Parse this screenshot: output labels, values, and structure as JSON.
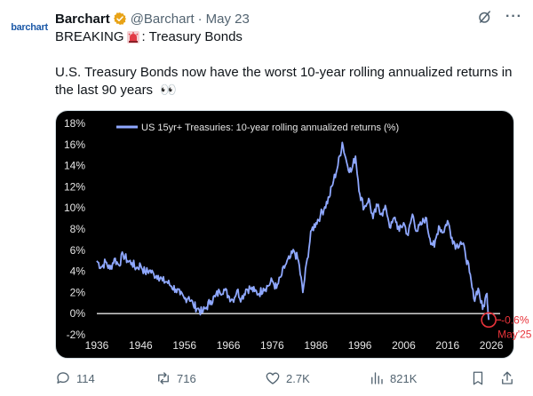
{
  "avatar": {
    "logo_text": "barchart"
  },
  "header": {
    "author": "Barchart",
    "handle": "@Barchart",
    "separator": "·",
    "date": "May 23",
    "more": "···"
  },
  "tweet": {
    "line1_prefix": "BREAKING",
    "line1_suffix": ": Treasury Bonds",
    "body": "U.S. Treasury Bonds now have the worst 10-year rolling annualized returns in the last 90 years",
    "eyes": "👀"
  },
  "chart_data": {
    "type": "line",
    "series": [
      {
        "name": "US 15yr+ Treasuries: 10-year rolling annualized returns (%)",
        "color": "#8fa8ff"
      }
    ],
    "x_ticks": [
      "1936",
      "1946",
      "1956",
      "1966",
      "1976",
      "1986",
      "1996",
      "2006",
      "2016",
      "2026"
    ],
    "y_ticks": [
      "18%",
      "16%",
      "14%",
      "12%",
      "10%",
      "8%",
      "6%",
      "4%",
      "2%",
      "0%",
      "-2%"
    ],
    "xlim": [
      1936,
      2028
    ],
    "ylim": [
      -2,
      18
    ],
    "annotation": {
      "value_label": "-0.6%",
      "date_label": "May'25",
      "x": 2025.4,
      "y": -0.6,
      "color": "#e8333a"
    },
    "points": [
      [
        1936,
        5.0
      ],
      [
        1937,
        4.4
      ],
      [
        1938,
        4.9
      ],
      [
        1939,
        4.2
      ],
      [
        1940,
        5.2
      ],
      [
        1941,
        4.6
      ],
      [
        1942,
        5.6
      ],
      [
        1943,
        5.0
      ],
      [
        1944,
        4.8
      ],
      [
        1945,
        4.3
      ],
      [
        1946,
        4.6
      ],
      [
        1947,
        3.9
      ],
      [
        1948,
        4.1
      ],
      [
        1949,
        3.7
      ],
      [
        1950,
        3.6
      ],
      [
        1951,
        3.1
      ],
      [
        1952,
        3.0
      ],
      [
        1953,
        2.6
      ],
      [
        1954,
        2.3
      ],
      [
        1955,
        1.8
      ],
      [
        1956,
        1.4
      ],
      [
        1957,
        1.6
      ],
      [
        1958,
        0.8
      ],
      [
        1959,
        0.5
      ],
      [
        1960,
        0.1
      ],
      [
        1961,
        0.6
      ],
      [
        1962,
        1.2
      ],
      [
        1963,
        1.6
      ],
      [
        1964,
        2.1
      ],
      [
        1965,
        2.3
      ],
      [
        1966,
        1.7
      ],
      [
        1967,
        1.3
      ],
      [
        1968,
        2.2
      ],
      [
        1969,
        1.4
      ],
      [
        1970,
        2.3
      ],
      [
        1971,
        2.4
      ],
      [
        1972,
        2.1
      ],
      [
        1973,
        1.9
      ],
      [
        1974,
        2.4
      ],
      [
        1975,
        2.6
      ],
      [
        1976,
        3.1
      ],
      [
        1977,
        2.4
      ],
      [
        1978,
        3.5
      ],
      [
        1979,
        4.6
      ],
      [
        1980,
        5.2
      ],
      [
        1981,
        5.9
      ],
      [
        1982,
        5.0
      ],
      [
        1983,
        2.0
      ],
      [
        1984,
        5.2
      ],
      [
        1985,
        7.9
      ],
      [
        1986,
        8.6
      ],
      [
        1987,
        9.3
      ],
      [
        1988,
        10.1
      ],
      [
        1989,
        11.0
      ],
      [
        1990,
        12.6
      ],
      [
        1991,
        14.0
      ],
      [
        1992,
        16.2
      ],
      [
        1993,
        14.3
      ],
      [
        1994,
        13.4
      ],
      [
        1995,
        14.9
      ],
      [
        1996,
        11.3
      ],
      [
        1997,
        10.0
      ],
      [
        1998,
        10.9
      ],
      [
        1999,
        9.0
      ],
      [
        2000,
        10.2
      ],
      [
        2001,
        9.5
      ],
      [
        2002,
        9.9
      ],
      [
        2003,
        8.1
      ],
      [
        2004,
        9.1
      ],
      [
        2005,
        7.8
      ],
      [
        2006,
        8.6
      ],
      [
        2007,
        7.4
      ],
      [
        2008,
        9.4
      ],
      [
        2009,
        7.8
      ],
      [
        2010,
        8.4
      ],
      [
        2011,
        9.1
      ],
      [
        2012,
        7.1
      ],
      [
        2013,
        6.3
      ],
      [
        2014,
        8.3
      ],
      [
        2015,
        7.7
      ],
      [
        2016,
        8.8
      ],
      [
        2017,
        7.2
      ],
      [
        2018,
        6.4
      ],
      [
        2019,
        6.8
      ],
      [
        2020,
        5.9
      ],
      [
        2021,
        3.9
      ],
      [
        2022,
        1.4
      ],
      [
        2023,
        2.4
      ],
      [
        2024,
        0.4
      ],
      [
        2025,
        1.9
      ],
      [
        2025.4,
        -0.6
      ]
    ]
  },
  "actions": {
    "replies": "114",
    "retweets": "716",
    "likes": "2.7K",
    "views": "821K"
  },
  "colors": {
    "text": "#0f1419",
    "secondary": "#536471",
    "verified_gold": "#e8a317",
    "chart_bg": "#000000",
    "series": "#8fa8ff"
  }
}
